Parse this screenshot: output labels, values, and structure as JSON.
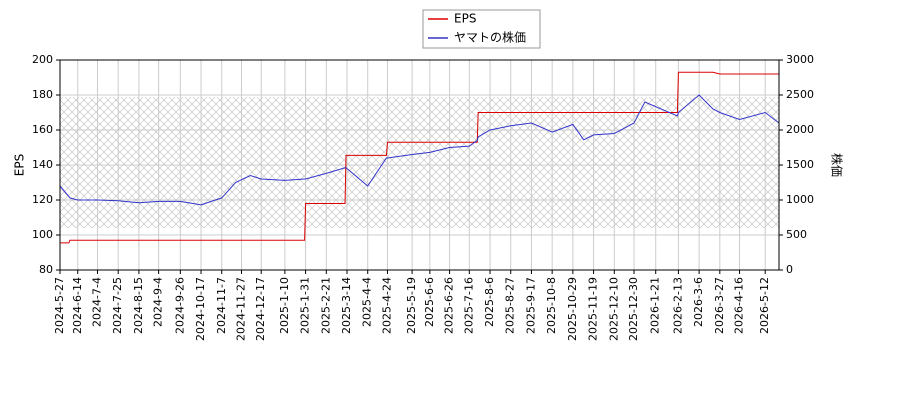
{
  "chart_data": {
    "type": "line",
    "ylabel": "EPS",
    "y2label": "株価",
    "x": [
      "2024-5-27",
      "2024-6-5",
      "2024-6-6",
      "2024-6-14",
      "2024-7-4",
      "2024-7-25",
      "2024-8-15",
      "2024-9-4",
      "2024-9-26",
      "2024-10-17",
      "2024-11-7",
      "2024-11-21",
      "2024-12-6",
      "2024-12-17",
      "2025-1-10",
      "2025-1-30",
      "2025-1-31",
      "2025-2-21",
      "2025-3-12",
      "2025-3-13",
      "2025-4-4",
      "2025-4-23",
      "2025-4-24",
      "2025-5-19",
      "2025-6-6",
      "2025-6-26",
      "2025-7-16",
      "2025-7-24",
      "2025-7-25",
      "2025-8-6",
      "2025-8-27",
      "2025-9-17",
      "2025-10-8",
      "2025-10-29",
      "2025-11-9",
      "2025-11-19",
      "2025-12-10",
      "2025-12-30",
      "2026-1-10",
      "2026-2-12",
      "2026-2-13",
      "2026-3-6",
      "2026-3-20",
      "2026-3-27",
      "2026-4-16",
      "2026-5-12",
      "2026-5-26"
    ],
    "series": [
      {
        "name": "EPS",
        "color": "#dd0000",
        "values": [
          95.5,
          95.5,
          97,
          97,
          97,
          97,
          97,
          97,
          97,
          97,
          97,
          97,
          97,
          97,
          97,
          97,
          118,
          118,
          118,
          145.5,
          145.5,
          145.5,
          153,
          153,
          153,
          153,
          153,
          153,
          170,
          170,
          170,
          170,
          170,
          170,
          170,
          170,
          170,
          170,
          170,
          170,
          193,
          193,
          193,
          192,
          192,
          192,
          192
        ]
      },
      {
        "name": "ヤマトの株価",
        "color": "#3333cc",
        "axis": "y2",
        "values": [
          1200,
          1050,
          1030,
          1000,
          1000,
          990,
          960,
          980,
          980,
          930,
          1030,
          1250,
          1350,
          1300,
          1280,
          1300,
          1300,
          1380,
          1460,
          1460,
          1200,
          1600,
          1600,
          1650,
          1680,
          1750,
          1770,
          1850,
          1900,
          2000,
          2060,
          2100,
          1970,
          2080,
          1860,
          1930,
          1950,
          2100,
          2400,
          2200,
          2250,
          2500,
          2300,
          2250,
          2150,
          2250,
          2100
        ]
      }
    ],
    "band": [
      600,
      2470
    ],
    "xlim": [
      "2024-5-27",
      "2026-5-26"
    ],
    "xticks": [
      "2024-5-27",
      "2024-6-14",
      "2024-7-4",
      "2024-7-25",
      "2024-8-15",
      "2024-9-4",
      "2024-9-26",
      "2024-10-17",
      "2024-11-7",
      "2024-11-27",
      "2024-12-17",
      "2025-1-10",
      "2025-1-31",
      "2025-2-21",
      "2025-3-14",
      "2025-4-4",
      "2025-4-24",
      "2025-5-19",
      "2025-6-6",
      "2025-6-26",
      "2025-7-16",
      "2025-8-6",
      "2025-8-27",
      "2025-9-17",
      "2025-10-8",
      "2025-10-29",
      "2025-11-19",
      "2025-12-10",
      "2025-12-30",
      "2026-1-21",
      "2026-2-13",
      "2026-3-6",
      "2026-3-27",
      "2026-4-16",
      "2026-5-12"
    ],
    "ylim": [
      80,
      200
    ],
    "yticks": [
      80,
      100,
      120,
      140,
      160,
      180,
      200
    ],
    "y2lim": [
      0,
      3000
    ],
    "y2ticks": [
      0,
      500,
      1000,
      1500,
      2000,
      2500,
      3000
    ],
    "grid": true,
    "legend": "top"
  }
}
